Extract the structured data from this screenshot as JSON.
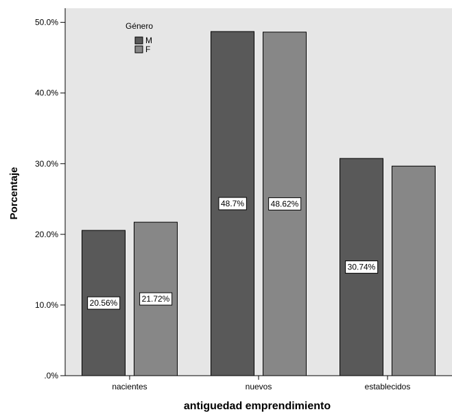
{
  "chart_data": {
    "type": "bar",
    "title": "",
    "xlabel": "antiguedad emprendimiento",
    "ylabel": "Porcentaje",
    "categories": [
      "nacientes",
      "nuevos",
      "establecidos"
    ],
    "series": [
      {
        "name": "M",
        "values": [
          20.56,
          48.7,
          30.74
        ],
        "color": "#595959",
        "labels": [
          "20.56%",
          "48.7%",
          "30.74%"
        ]
      },
      {
        "name": "F",
        "values": [
          21.72,
          48.62,
          29.66
        ],
        "color": "#878787",
        "labels": [
          "21.72%",
          "48.62%",
          ""
        ]
      }
    ],
    "ylim": [
      0,
      52
    ],
    "yticks": [
      0,
      10,
      20,
      30,
      40,
      50
    ],
    "ytick_labels": [
      ".0%",
      "10.0%",
      "20.0%",
      "30.0%",
      "40.0%",
      "50.0%"
    ],
    "legend": {
      "title": "Género",
      "placement": "top-left"
    },
    "plot_background": "#e6e6e6",
    "grid": false
  }
}
